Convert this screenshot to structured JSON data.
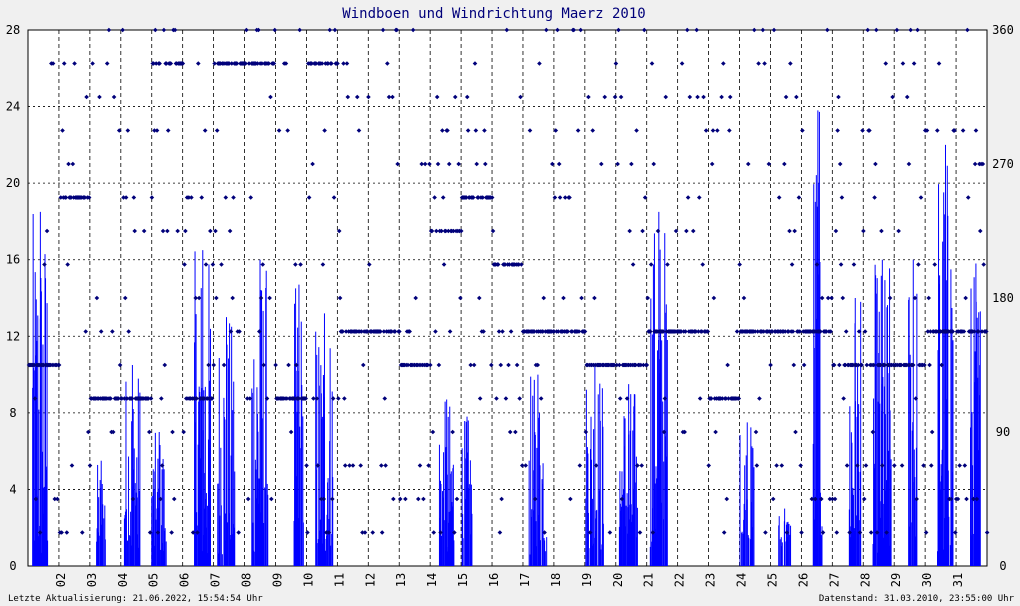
{
  "chart_data": {
    "type": "bar+scatter",
    "title": "Windboen und Windrichtung Maerz 2010",
    "footer_left": "Letzte Aktualisierung: 21.06.2022, 15:54:54 Uhr",
    "footer_right": "Datenstand: 31.03.2010, 23:55:00 Uhr",
    "y_left": {
      "ticks": [
        "0",
        "4",
        "8",
        "12",
        "16",
        "20",
        "24",
        "28"
      ],
      "range": [
        0,
        28
      ]
    },
    "y_right": {
      "ticks": [
        "0",
        "90",
        "180",
        "270",
        "360"
      ],
      "range": [
        0,
        360
      ]
    },
    "x_ticks": [
      "02",
      "03",
      "04",
      "05",
      "06",
      "07",
      "08",
      "09",
      "10",
      "11",
      "12",
      "13",
      "14",
      "15",
      "16",
      "17",
      "18",
      "19",
      "20",
      "21",
      "22",
      "23",
      "24",
      "25",
      "26",
      "27",
      "28",
      "29",
      "30",
      "31"
    ],
    "colors": {
      "gust": "#0000ff",
      "direction": "#00007a",
      "title": "#00007a",
      "grid": "#000000"
    },
    "series": [
      {
        "kind": "bar",
        "note_days_with_gusts": [
          1,
          3.5,
          4.5,
          5.5,
          6.5,
          7.5,
          8.5,
          9.5,
          10.5,
          11.5,
          14.5,
          15.5,
          16,
          17.5,
          19.5,
          20.5,
          21.5,
          24.5,
          25.5,
          26.5,
          27.5,
          28.5,
          29.5,
          30.5,
          31.5
        ],
        "peak_per_day": [
          18.5,
          0,
          5.5,
          10.5,
          7,
          16.5,
          13,
          16,
          14.7,
          13.2,
          0,
          0,
          0,
          8.7,
          7.8,
          0,
          10,
          0,
          10.5,
          9.5,
          18.5,
          0,
          0,
          7.5,
          3,
          23.8,
          14,
          16,
          16,
          22,
          15.8
        ]
      },
      {
        "kind": "scatter",
        "direction_levels_deg": [
          22.5,
          45,
          67.5,
          90,
          112.5,
          135,
          157.5,
          180,
          202.5,
          225,
          247.5,
          270,
          292.5,
          315,
          337.5,
          360
        ],
        "dominant_per_day_deg": [
          135,
          247.5,
          112.5,
          112.5,
          337.5,
          112.5,
          337.5,
          337.5,
          112.5,
          337.5,
          157.5,
          157.5,
          135,
          225,
          247.5,
          202.5,
          157.5,
          157.5,
          135,
          135,
          157.5,
          157.5,
          112.5,
          157.5,
          157.5,
          157.5,
          135,
          135,
          135,
          157.5,
          157.5
        ]
      }
    ]
  }
}
